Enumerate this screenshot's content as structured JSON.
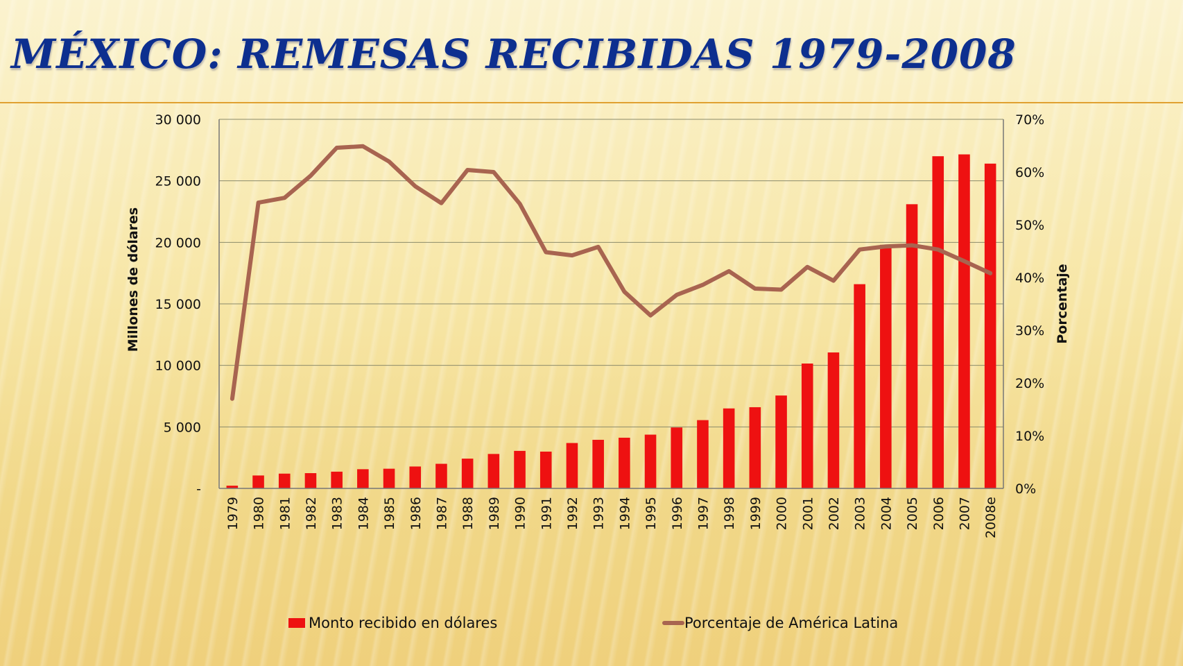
{
  "title": "MÉXICO: REMESAS RECIBIDAS 1979-2008",
  "colors": {
    "bars": "#ee1111",
    "line": "#a86450",
    "title": "#0d2f8f"
  },
  "chart_data": {
    "type": "bar",
    "categories": [
      "1979",
      "1980",
      "1981",
      "1982",
      "1983",
      "1984",
      "1985",
      "1986",
      "1987",
      "1988",
      "1989",
      "1990",
      "1991",
      "1992",
      "1993",
      "1994",
      "1995",
      "1996",
      "1997",
      "1998",
      "1999",
      "2000",
      "2001",
      "2002",
      "2003",
      "2004",
      "2005",
      "2006",
      "2007",
      "2008e"
    ],
    "series": [
      {
        "name": "Monto recibido en dólares",
        "type": "bar",
        "axis": "left",
        "values": [
          220,
          1050,
          1200,
          1240,
          1360,
          1560,
          1600,
          1780,
          2000,
          2420,
          2800,
          3050,
          2990,
          3690,
          3950,
          4120,
          4370,
          4950,
          5550,
          6500,
          6600,
          7550,
          10150,
          11050,
          16600,
          19800,
          23100,
          27000,
          27150,
          26400
        ]
      },
      {
        "name": "Porcentaje de América Latina",
        "type": "line",
        "axis": "right",
        "values": [
          17,
          54.2,
          55.1,
          59.3,
          64.6,
          64.9,
          62,
          57.3,
          54.1,
          60.4,
          60,
          54,
          44.8,
          44.2,
          45.8,
          37.3,
          32.8,
          36.7,
          38.6,
          41.2,
          37.9,
          37.7,
          42,
          39.4,
          45.3,
          45.9,
          46.1,
          45.3,
          43.1,
          40.8
        ]
      }
    ],
    "ylabel": "Millones de dólares",
    "y2label": "Porcentaje",
    "ylim": [
      0,
      30000
    ],
    "y2lim": [
      0,
      70
    ],
    "yticks": [
      "-",
      "5 000",
      "10 000",
      "15 000",
      "20 000",
      "25 000",
      "30 000"
    ],
    "y2ticks": [
      "0%",
      "10%",
      "20%",
      "30%",
      "40%",
      "50%",
      "60%",
      "70%"
    ],
    "grid": true,
    "legend": "bottom"
  }
}
